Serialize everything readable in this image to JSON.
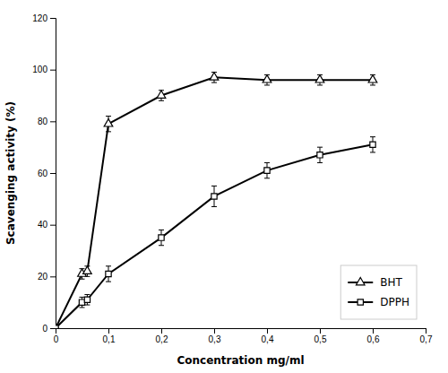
{
  "chart_data": {
    "type": "line",
    "xlabel": "Concentration mg/ml",
    "ylabel": "Scavenging activity (%)",
    "x": [
      0,
      0.05,
      0.06,
      0.1,
      0.2,
      0.3,
      0.4,
      0.5,
      0.6
    ],
    "series": [
      {
        "name": "BHT",
        "color": "#000000",
        "marker": "triangle",
        "line_style": "solid",
        "values": [
          0,
          21,
          22,
          79,
          90,
          97,
          96,
          96,
          96
        ],
        "errors": [
          0,
          2,
          2,
          3,
          2,
          2,
          2,
          2,
          2
        ]
      },
      {
        "name": "DPPH",
        "color": "#000000",
        "marker": "square",
        "line_style": "solid",
        "values": [
          0,
          10,
          11,
          21,
          35,
          51,
          61,
          67,
          71
        ],
        "errors": [
          0,
          2,
          2,
          3,
          3,
          4,
          3,
          3,
          3
        ]
      }
    ],
    "xlim": [
      0,
      0.7
    ],
    "ylim": [
      0,
      120
    ],
    "xticks": [
      0,
      {
        "value": 0.1,
        "label": "0,1"
      },
      {
        "value": 0.2,
        "label": "0,2"
      },
      {
        "value": 0.3,
        "label": "0,3"
      },
      {
        "value": 0.4,
        "label": "0,4"
      },
      {
        "value": 0.5,
        "label": "0,5"
      },
      {
        "value": 0.6,
        "label": "0,6"
      },
      {
        "value": 0.7,
        "label": "0,7"
      }
    ],
    "yticks": [
      0,
      20,
      40,
      60,
      80,
      100,
      120
    ],
    "grid": false,
    "legend": "lower right"
  }
}
